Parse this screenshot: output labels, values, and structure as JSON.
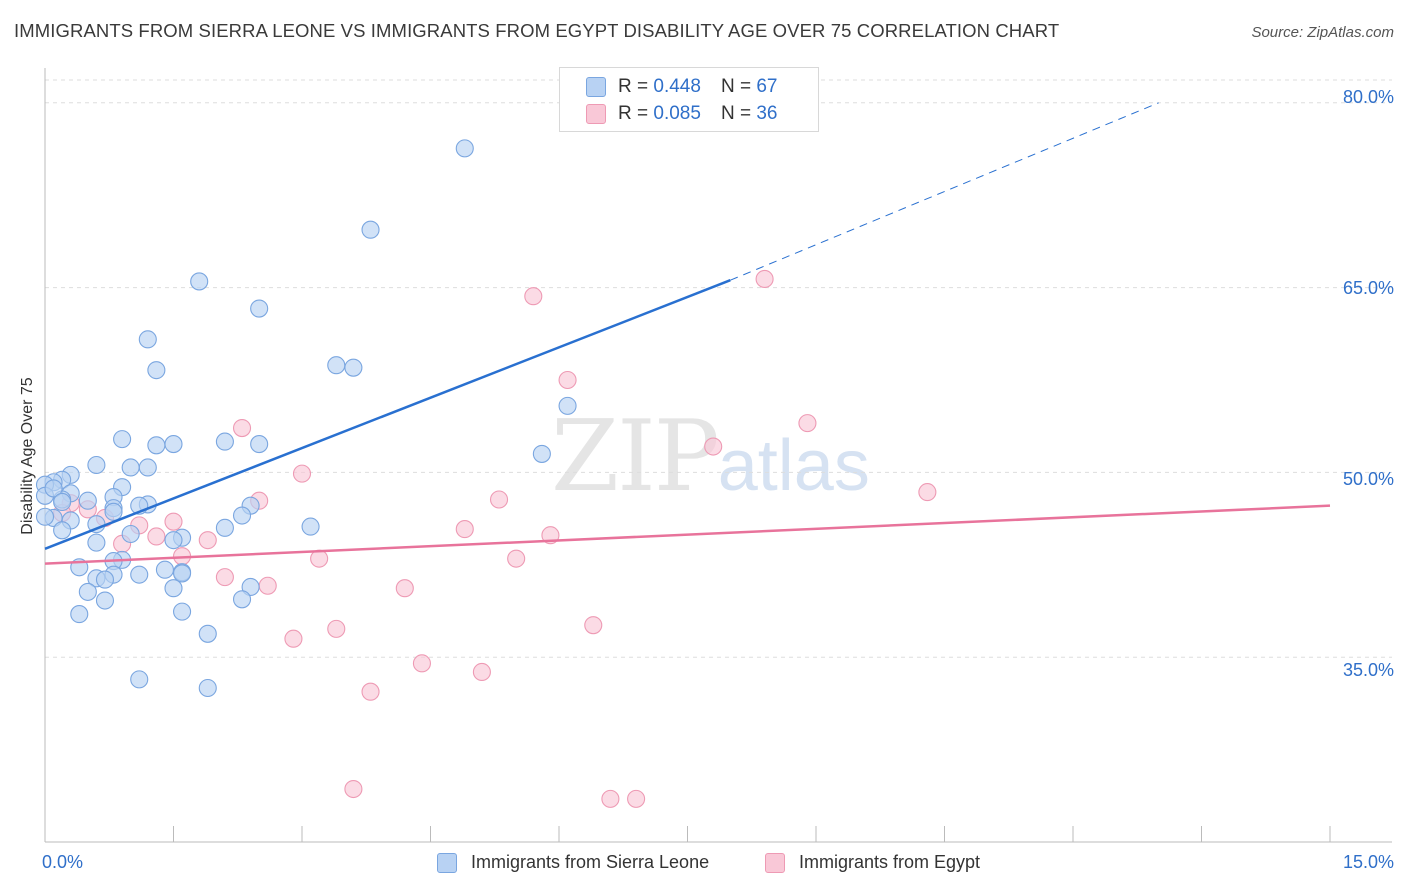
{
  "title": "IMMIGRANTS FROM SIERRA LEONE VS IMMIGRANTS FROM EGYPT DISABILITY AGE OVER 75 CORRELATION CHART",
  "source": "Source: ZipAtlas.com",
  "watermark": {
    "zip": "ZIP",
    "atlas": "atlas"
  },
  "legend": {
    "r_label": "R =",
    "n_label": "N =",
    "series": [
      {
        "r": "0.448",
        "n": "67"
      },
      {
        "r": "0.085",
        "n": "36"
      }
    ]
  },
  "colors": {
    "blue_fill": "#b8d2f3",
    "blue_stroke": "#7aa6e0",
    "blue_line": "#2970d0",
    "pink_fill": "#f9c8d7",
    "pink_stroke": "#ee9ab4",
    "pink_line": "#e8739b",
    "grid": "#dddddd",
    "axis_text": "#2f6fc9"
  },
  "chart_data": {
    "type": "scatter",
    "title": "IMMIGRANTS FROM SIERRA LEONE VS IMMIGRANTS FROM EGYPT DISABILITY AGE OVER 75 CORRELATION CHART",
    "xlabel": "",
    "ylabel": "Disability Age Over 75",
    "xlim": [
      0,
      15
    ],
    "ylim": [
      20,
      82.5
    ],
    "x_tick_labels": [
      "0.0%",
      "15.0%"
    ],
    "y_ticks": [
      35,
      50,
      65,
      80
    ],
    "y_tick_labels": [
      "35.0%",
      "50.0%",
      "65.0%",
      "80.0%"
    ],
    "grid": true,
    "legend_position": "top-center",
    "series": [
      {
        "name": "Immigrants from Sierra Leone",
        "color": "#7aa6e0",
        "trend": {
          "x": [
            0,
            8.0
          ],
          "y": [
            43.8,
            65.6
          ],
          "extended_to": [
            13.0,
            80.0
          ]
        },
        "points": [
          {
            "x": 4.9,
            "y": 76.3
          },
          {
            "x": 3.8,
            "y": 69.7
          },
          {
            "x": 1.8,
            "y": 65.5
          },
          {
            "x": 2.5,
            "y": 63.3
          },
          {
            "x": 1.2,
            "y": 60.8
          },
          {
            "x": 3.4,
            "y": 58.7
          },
          {
            "x": 3.6,
            "y": 58.5
          },
          {
            "x": 1.3,
            "y": 58.3
          },
          {
            "x": 6.1,
            "y": 55.4
          },
          {
            "x": 0.9,
            "y": 52.7
          },
          {
            "x": 2.1,
            "y": 52.5
          },
          {
            "x": 2.5,
            "y": 52.3
          },
          {
            "x": 1.5,
            "y": 52.3
          },
          {
            "x": 1.3,
            "y": 52.2
          },
          {
            "x": 5.8,
            "y": 51.5
          },
          {
            "x": 0.6,
            "y": 50.6
          },
          {
            "x": 1.2,
            "y": 50.4
          },
          {
            "x": 1.0,
            "y": 50.4
          },
          {
            "x": 0.3,
            "y": 49.8
          },
          {
            "x": 0.2,
            "y": 49.4
          },
          {
            "x": 0.1,
            "y": 49.2
          },
          {
            "x": 0.0,
            "y": 49.0
          },
          {
            "x": 0.9,
            "y": 48.8
          },
          {
            "x": 0.3,
            "y": 48.3
          },
          {
            "x": 0.0,
            "y": 48.1
          },
          {
            "x": 0.8,
            "y": 48.0
          },
          {
            "x": 0.2,
            "y": 47.8
          },
          {
            "x": 0.5,
            "y": 47.7
          },
          {
            "x": 1.2,
            "y": 47.4
          },
          {
            "x": 1.1,
            "y": 47.3
          },
          {
            "x": 2.4,
            "y": 47.3
          },
          {
            "x": 0.8,
            "y": 47.1
          },
          {
            "x": 0.8,
            "y": 46.8
          },
          {
            "x": 2.3,
            "y": 46.5
          },
          {
            "x": 0.1,
            "y": 46.3
          },
          {
            "x": 0.3,
            "y": 46.1
          },
          {
            "x": 0.6,
            "y": 45.8
          },
          {
            "x": 3.1,
            "y": 45.6
          },
          {
            "x": 2.1,
            "y": 45.5
          },
          {
            "x": 0.2,
            "y": 45.3
          },
          {
            "x": 1.0,
            "y": 45.0
          },
          {
            "x": 1.6,
            "y": 44.7
          },
          {
            "x": 1.5,
            "y": 44.5
          },
          {
            "x": 0.6,
            "y": 44.3
          },
          {
            "x": 0.9,
            "y": 42.9
          },
          {
            "x": 0.8,
            "y": 42.8
          },
          {
            "x": 0.4,
            "y": 42.3
          },
          {
            "x": 1.4,
            "y": 42.1
          },
          {
            "x": 1.6,
            "y": 41.9
          },
          {
            "x": 1.6,
            "y": 41.8
          },
          {
            "x": 0.8,
            "y": 41.7
          },
          {
            "x": 1.1,
            "y": 41.7
          },
          {
            "x": 0.6,
            "y": 41.4
          },
          {
            "x": 0.7,
            "y": 41.3
          },
          {
            "x": 1.5,
            "y": 40.6
          },
          {
            "x": 2.4,
            "y": 40.7
          },
          {
            "x": 0.5,
            "y": 40.3
          },
          {
            "x": 0.7,
            "y": 39.6
          },
          {
            "x": 2.3,
            "y": 39.7
          },
          {
            "x": 1.6,
            "y": 38.7
          },
          {
            "x": 0.4,
            "y": 38.5
          },
          {
            "x": 1.9,
            "y": 36.9
          },
          {
            "x": 1.1,
            "y": 33.2
          },
          {
            "x": 1.9,
            "y": 32.5
          },
          {
            "x": 0.1,
            "y": 48.7
          },
          {
            "x": 0.2,
            "y": 47.6
          },
          {
            "x": 0.0,
            "y": 46.4
          }
        ]
      },
      {
        "name": "Immigrants from Egypt",
        "color": "#ee9ab4",
        "trend": {
          "x": [
            0,
            15
          ],
          "y": [
            42.6,
            47.3
          ]
        },
        "points": [
          {
            "x": 8.4,
            "y": 65.7
          },
          {
            "x": 5.7,
            "y": 64.3
          },
          {
            "x": 6.1,
            "y": 57.5
          },
          {
            "x": 8.9,
            "y": 54.0
          },
          {
            "x": 2.3,
            "y": 53.6
          },
          {
            "x": 7.8,
            "y": 52.1
          },
          {
            "x": 3.0,
            "y": 49.9
          },
          {
            "x": 10.3,
            "y": 48.4
          },
          {
            "x": 5.3,
            "y": 47.8
          },
          {
            "x": 2.5,
            "y": 47.7
          },
          {
            "x": 0.3,
            "y": 47.5
          },
          {
            "x": 0.5,
            "y": 47.0
          },
          {
            "x": 0.2,
            "y": 46.7
          },
          {
            "x": 0.7,
            "y": 46.3
          },
          {
            "x": 1.5,
            "y": 46.0
          },
          {
            "x": 1.1,
            "y": 45.7
          },
          {
            "x": 4.9,
            "y": 45.4
          },
          {
            "x": 5.9,
            "y": 44.9
          },
          {
            "x": 1.3,
            "y": 44.8
          },
          {
            "x": 1.9,
            "y": 44.5
          },
          {
            "x": 0.9,
            "y": 44.2
          },
          {
            "x": 1.6,
            "y": 43.2
          },
          {
            "x": 3.2,
            "y": 43.0
          },
          {
            "x": 5.5,
            "y": 43.0
          },
          {
            "x": 2.1,
            "y": 41.5
          },
          {
            "x": 2.6,
            "y": 40.8
          },
          {
            "x": 4.2,
            "y": 40.6
          },
          {
            "x": 6.4,
            "y": 37.6
          },
          {
            "x": 3.4,
            "y": 37.3
          },
          {
            "x": 2.9,
            "y": 36.5
          },
          {
            "x": 4.4,
            "y": 34.5
          },
          {
            "x": 5.1,
            "y": 33.8
          },
          {
            "x": 3.8,
            "y": 32.2
          },
          {
            "x": 3.6,
            "y": 24.3
          },
          {
            "x": 6.6,
            "y": 23.5
          },
          {
            "x": 6.9,
            "y": 23.5
          }
        ]
      }
    ]
  }
}
